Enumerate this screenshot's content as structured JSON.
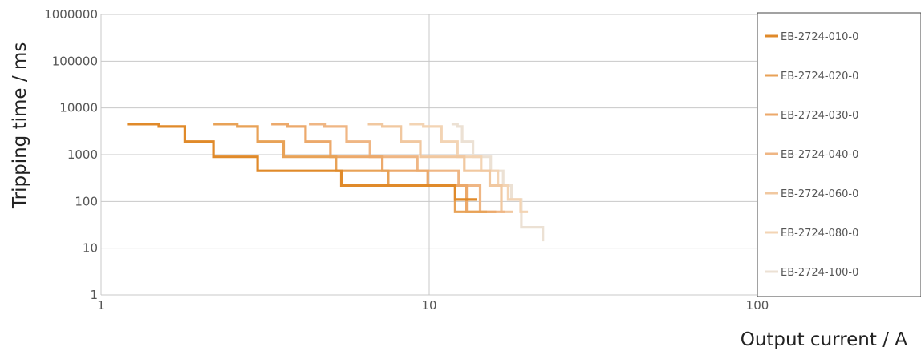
{
  "chart_data": {
    "type": "line",
    "xlabel": "Output current / A",
    "ylabel": "Tripping time / ms",
    "x_scale": "log",
    "y_scale": "log",
    "xlim": [
      1,
      100
    ],
    "ylim": [
      1,
      1000000
    ],
    "x_ticks": [
      {
        "value": 1,
        "label": "1"
      },
      {
        "value": 10,
        "label": "10"
      },
      {
        "value": 100,
        "label": "100"
      }
    ],
    "y_ticks": [
      {
        "value": 1,
        "label": "1"
      },
      {
        "value": 10,
        "label": "10"
      },
      {
        "value": 100,
        "label": "100"
      },
      {
        "value": 1000,
        "label": "1000"
      },
      {
        "value": 10000,
        "label": "10000"
      },
      {
        "value": 100000,
        "label": "100000"
      },
      {
        "value": 1000000,
        "label": "1000000"
      }
    ],
    "grid": true,
    "legend_position": "right",
    "series": [
      {
        "name": "EB-2724-010-0",
        "color": "#e08a2a",
        "x": [
          1.2,
          1.5,
          1.5,
          1.8,
          1.8,
          2.2,
          2.2,
          3.0,
          3.0,
          5.4,
          5.4,
          12.0,
          12.0,
          14.0
        ],
        "y": [
          4500,
          4500,
          4000,
          4000,
          1900,
          1900,
          900,
          900,
          450,
          450,
          220,
          220,
          110,
          110
        ]
      },
      {
        "name": "EB-2724-020-0",
        "color": "#e8a257",
        "x": [
          2.2,
          2.6,
          2.6,
          3.0,
          3.0,
          3.6,
          3.6,
          5.2,
          5.2,
          7.5,
          7.5,
          12.0,
          12.0,
          15.0
        ],
        "y": [
          4500,
          4500,
          4000,
          4000,
          1900,
          1900,
          900,
          900,
          450,
          450,
          220,
          220,
          60,
          60
        ]
      },
      {
        "name": "EB-2724-030-0",
        "color": "#eca96b",
        "x": [
          3.3,
          3.7,
          3.7,
          4.2,
          4.2,
          5.0,
          5.0,
          7.2,
          7.2,
          9.9,
          9.9,
          13.0,
          13.0,
          16.0
        ],
        "y": [
          4500,
          4500,
          4000,
          4000,
          1900,
          1900,
          900,
          900,
          450,
          450,
          220,
          220,
          60,
          60
        ]
      },
      {
        "name": "EB-2724-040-0",
        "color": "#efb684",
        "x": [
          4.3,
          4.8,
          4.8,
          5.6,
          5.6,
          6.6,
          6.6,
          9.2,
          9.2,
          12.3,
          12.3,
          14.3,
          14.3,
          17.0
        ],
        "y": [
          4500,
          4500,
          4000,
          4000,
          1900,
          1900,
          900,
          900,
          450,
          450,
          220,
          220,
          60,
          60
        ]
      },
      {
        "name": "EB-2724-060-0",
        "color": "#f1c8a0",
        "x": [
          6.5,
          7.2,
          7.2,
          8.2,
          8.2,
          9.4,
          9.4,
          12.8,
          12.8,
          15.3,
          15.3,
          16.6,
          16.6,
          18.0
        ],
        "y": [
          4500,
          4500,
          4000,
          4000,
          1900,
          1900,
          900,
          900,
          450,
          450,
          220,
          220,
          60,
          60
        ]
      },
      {
        "name": "EB-2724-080-0",
        "color": "#f3d4b4",
        "x": [
          8.7,
          9.6,
          9.6,
          10.9,
          10.9,
          12.2,
          12.2,
          14.4,
          14.4,
          16.2,
          16.2,
          17.4,
          17.4,
          19.0,
          19.0,
          20.0
        ],
        "y": [
          4500,
          4500,
          4000,
          4000,
          1900,
          1900,
          900,
          900,
          450,
          450,
          220,
          220,
          110,
          110,
          60,
          60
        ]
      },
      {
        "name": "EB-2724-100-0",
        "color": "#ece1d4",
        "x": [
          11.7,
          12.2,
          12.2,
          12.6,
          12.6,
          13.6,
          13.6,
          15.4,
          15.4,
          16.8,
          16.8,
          17.8,
          17.8,
          19.1,
          19.1,
          22.2,
          22.2
        ],
        "y": [
          4500,
          4500,
          4000,
          4000,
          1900,
          1900,
          900,
          900,
          450,
          450,
          220,
          220,
          110,
          110,
          28,
          28,
          14
        ]
      }
    ]
  }
}
